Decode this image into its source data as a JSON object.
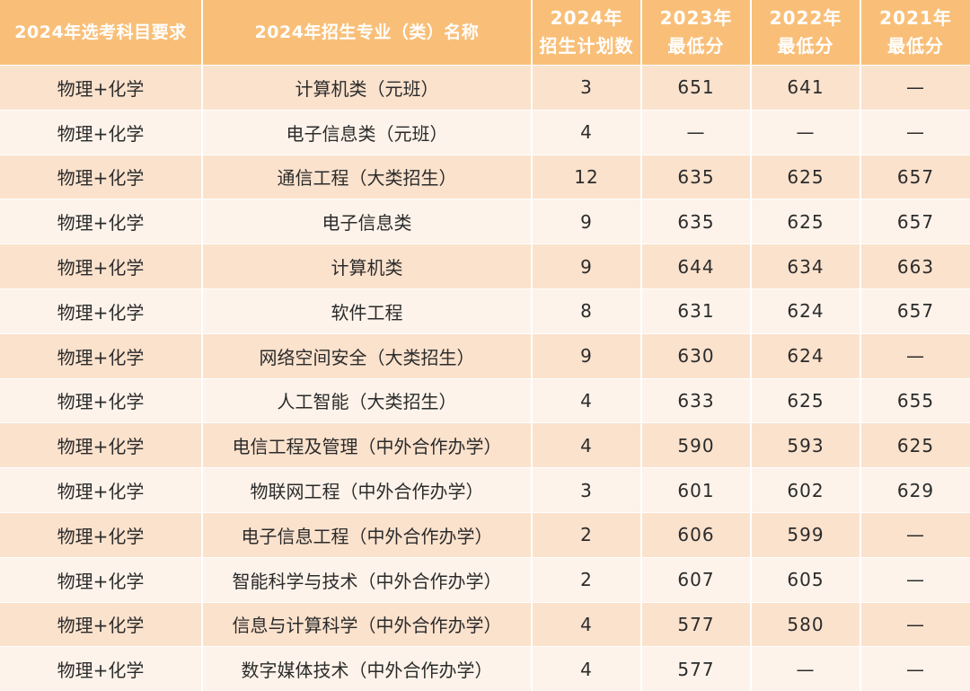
{
  "table": {
    "headers": [
      [
        "2024年选考科目要求"
      ],
      [
        "2024年招生专业（类）名称"
      ],
      [
        "2024年",
        "招生计划数"
      ],
      [
        "2023年",
        "最低分"
      ],
      [
        "2022年",
        "最低分"
      ],
      [
        "2021年",
        "最低分"
      ]
    ],
    "rows": [
      [
        "物理+化学",
        "计算机类（元班）",
        "3",
        "651",
        "641",
        "—"
      ],
      [
        "物理+化学",
        "电子信息类（元班）",
        "4",
        "—",
        "—",
        "—"
      ],
      [
        "物理+化学",
        "通信工程（大类招生）",
        "12",
        "635",
        "625",
        "657"
      ],
      [
        "物理+化学",
        "电子信息类",
        "9",
        "635",
        "625",
        "657"
      ],
      [
        "物理+化学",
        "计算机类",
        "9",
        "644",
        "634",
        "663"
      ],
      [
        "物理+化学",
        "软件工程",
        "8",
        "631",
        "624",
        "657"
      ],
      [
        "物理+化学",
        "网络空间安全（大类招生）",
        "9",
        "630",
        "624",
        "—"
      ],
      [
        "物理+化学",
        "人工智能（大类招生）",
        "4",
        "633",
        "625",
        "655"
      ],
      [
        "物理+化学",
        "电信工程及管理（中外合作办学）",
        "4",
        "590",
        "593",
        "625"
      ],
      [
        "物理+化学",
        "物联网工程（中外合作办学）",
        "3",
        "601",
        "602",
        "629"
      ],
      [
        "物理+化学",
        "电子信息工程（中外合作办学）",
        "2",
        "606",
        "599",
        "—"
      ],
      [
        "物理+化学",
        "智能科学与技术（中外合作办学）",
        "2",
        "607",
        "605",
        "—"
      ],
      [
        "物理+化学",
        "信息与计算科学（中外合作办学）",
        "4",
        "577",
        "580",
        "—"
      ],
      [
        "物理+化学",
        "数字媒体技术（中外合作办学）",
        "4",
        "577",
        "—",
        "—"
      ]
    ]
  },
  "colors": {
    "header_bg": "#f9bf78",
    "row_odd_bg": "#fbe2cd",
    "row_even_bg": "#fdf3ea"
  }
}
